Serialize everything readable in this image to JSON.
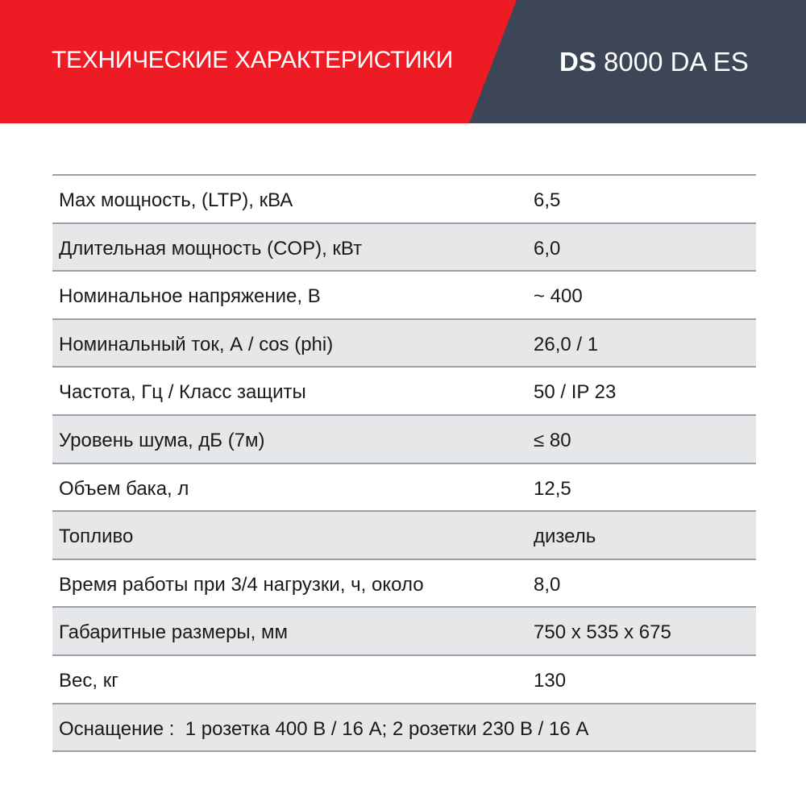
{
  "header": {
    "title": "ТЕХНИЧЕСКИЕ ХАРАКТЕРИСТИКИ",
    "model_bold": "DS",
    "model_rest": "8000 DA ES",
    "colors": {
      "red": "#ED1C24",
      "dark": "#3D4656"
    }
  },
  "specs": [
    {
      "label": "Max мощность, (LTP), кВА",
      "value": "6,5"
    },
    {
      "label": "Длительная мощность (COP), кВт",
      "value": "6,0"
    },
    {
      "label": "Номинальное напряжение, В",
      "value": "~ 400"
    },
    {
      "label": "Номинальный ток, А / cos (phi)",
      "value": "26,0 / 1"
    },
    {
      "label": "Частота, Гц / Класс защиты",
      "value": "50 / IP 23"
    },
    {
      "label": "Уровень шума, дБ (7м)",
      "value": "≤ 80"
    },
    {
      "label": "Объем бака, л",
      "value": "12,5"
    },
    {
      "label": "Топливо",
      "value": "дизель"
    },
    {
      "label": "Время работы при 3/4 нагрузки, ч, около",
      "value": "8,0"
    },
    {
      "label": "Габаритные размеры, мм",
      "value": "750 x 535 x 675"
    },
    {
      "label": "Вес, кг",
      "value": "130"
    }
  ],
  "equipment": "Оснащение :  1 розетка 400 В / 16 А; 2 розетки 230 В / 16 А"
}
